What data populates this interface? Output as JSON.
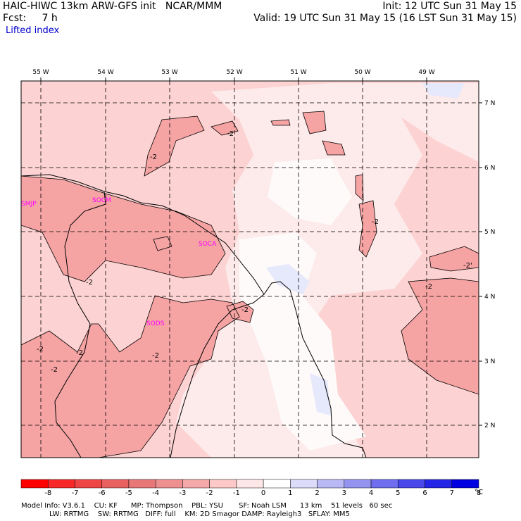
{
  "header": {
    "left_line1": "HAIC-HIWC 13km ARW-GFS init   NCAR/MMM",
    "left_line2": "Fcst:     7 h",
    "field": "Lifted index",
    "right_line1": "Init: 12 UTC Sun 31 May 15",
    "right_line2": "Valid: 19 UTC Sun 31 May 15 (16 LST Sun 31 May 15)"
  },
  "map": {
    "lon_labels": [
      "55 W",
      "54 W",
      "53 W",
      "52 W",
      "51 W",
      "50 W",
      "49 W"
    ],
    "lat_labels": [
      "7 N",
      "6 N",
      "5 N",
      "4 N",
      "3 N",
      "2 N"
    ],
    "stations": [
      "SMJP",
      "SOCM",
      "SOCA",
      "SODS"
    ],
    "contour_label": "-2",
    "contour_label_alt": "-2'",
    "colors": {
      "lt_-3_to_-2": "#f5a3a3",
      "lt_-2_to_-1": "#fcd2d2",
      "lt_-1_to_0": "#fdeaea",
      "lt_0_to_1": "#fefafa",
      "lt_1_to_2": "#e6e8fb"
    }
  },
  "colorbar": {
    "labels": [
      "-8",
      "-7",
      "-6",
      "-5",
      "-4",
      "-3",
      "-2",
      "-1",
      "0",
      "1",
      "2",
      "3",
      "4",
      "5",
      "6",
      "7",
      "8"
    ],
    "unit": "°C",
    "colors": [
      "#ff0000",
      "#f82828",
      "#f04545",
      "#e86060",
      "#e87878",
      "#ee9090",
      "#f5a8a8",
      "#fcc8c8",
      "#fde6e6",
      "#ffffff",
      "#dcdcfa",
      "#b8b8f5",
      "#9494f0",
      "#6e6eee",
      "#4848ea",
      "#2424e6",
      "#0000e0"
    ]
  },
  "footer": {
    "line1": "Model Info: V3.6.1    CU: KF      MP: Thompson    PBL: YSU       SF: Noah LSM      13 km    51 levels   60 sec",
    "line2": "LW: RRTMG    SW: RRTMG   DIFF: full    KM: 2D Smagor DAMP: Rayleigh3   SFLAY: MM5"
  }
}
